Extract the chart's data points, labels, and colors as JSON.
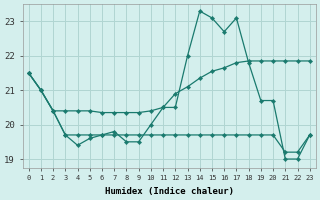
{
  "xlabel": "Humidex (Indice chaleur)",
  "ylabel": "",
  "background_color": "#d4efed",
  "grid_color": "#b0d5d2",
  "line_color": "#1a7a6e",
  "ylim": [
    18.75,
    23.5
  ],
  "xlim": [
    -0.5,
    23.5
  ],
  "yticks": [
    19,
    20,
    21,
    22,
    23
  ],
  "xticks": [
    0,
    1,
    2,
    3,
    4,
    5,
    6,
    7,
    8,
    9,
    10,
    11,
    12,
    13,
    14,
    15,
    16,
    17,
    18,
    19,
    20,
    21,
    22,
    23
  ],
  "line1_x": [
    0,
    1,
    2,
    3,
    4,
    5,
    6,
    7,
    8,
    9,
    10,
    11,
    12,
    13,
    14,
    15,
    16,
    17,
    18,
    19,
    20,
    21,
    22,
    23
  ],
  "line1_y": [
    21.5,
    21.0,
    20.4,
    19.7,
    19.4,
    19.6,
    19.7,
    19.8,
    19.5,
    19.5,
    20.0,
    20.5,
    20.5,
    22.0,
    23.3,
    23.1,
    22.7,
    23.1,
    21.8,
    20.7,
    20.7,
    19.0,
    19.0,
    19.7
  ],
  "line2_x": [
    0,
    1,
    2,
    3,
    4,
    5,
    6,
    7,
    8,
    9,
    10,
    11,
    12,
    13,
    14,
    15,
    16,
    17,
    18,
    19,
    20,
    21,
    22,
    23
  ],
  "line2_y": [
    21.5,
    21.0,
    20.4,
    20.4,
    20.4,
    20.4,
    20.35,
    20.35,
    20.35,
    20.35,
    20.4,
    20.5,
    20.9,
    21.1,
    21.35,
    21.55,
    21.65,
    21.8,
    21.85,
    21.85,
    21.85,
    21.85,
    21.85,
    21.85
  ],
  "line3_x": [
    0,
    1,
    2,
    3,
    4,
    5,
    6,
    7,
    8,
    9,
    10,
    11,
    12,
    13,
    14,
    15,
    16,
    17,
    18,
    19,
    20,
    21,
    22,
    23
  ],
  "line3_y": [
    21.5,
    21.0,
    20.4,
    19.7,
    19.7,
    19.7,
    19.7,
    19.7,
    19.7,
    19.7,
    19.7,
    19.7,
    19.7,
    19.7,
    19.7,
    19.7,
    19.7,
    19.7,
    19.7,
    19.7,
    19.7,
    19.2,
    19.2,
    19.7
  ]
}
